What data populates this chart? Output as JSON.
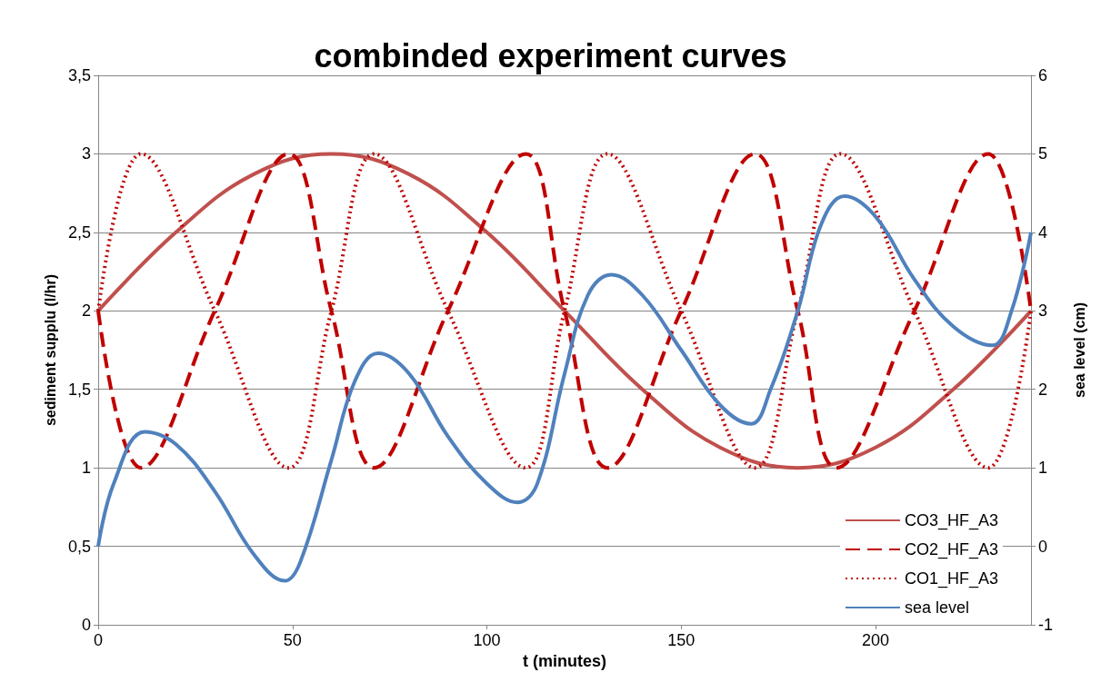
{
  "chart_data": {
    "type": "line",
    "title": "combinded experiment curves",
    "xlabel": "t (minutes)",
    "ylabel": "sediment supplu (l/hr)",
    "y2label": "sea level (cm)",
    "xlim": [
      0,
      240
    ],
    "xticks": [
      0,
      50,
      100,
      150,
      200
    ],
    "ylim": [
      0,
      3.5
    ],
    "yticks": [
      0,
      {
        "value": 0.5,
        "label": "0,5"
      },
      1,
      {
        "value": 1.5,
        "label": "1,5"
      },
      2,
      {
        "value": 2.5,
        "label": "2,5"
      },
      3,
      {
        "value": 3.5,
        "label": "3,5"
      }
    ],
    "y2lim": [
      -1,
      6
    ],
    "y2ticks": [
      -1,
      0,
      1,
      2,
      3,
      4,
      5,
      6
    ],
    "grid": "y",
    "legend": "bottom right",
    "marker": "none",
    "series": [
      {
        "name": "CO3_HF_A3",
        "color": "#c0504d",
        "line_style": "solid",
        "x": [
          0,
          20,
          40,
          60,
          80,
          100,
          120,
          140,
          160,
          180,
          200,
          220,
          240
        ],
        "values": [
          2,
          2.5,
          2.87,
          3,
          2.87,
          2.5,
          2,
          1.5,
          1.13,
          1,
          1.13,
          1.5,
          2
        ]
      },
      {
        "name": "CO2_HF_A3",
        "color": "#c00000",
        "line_style": "dashed",
        "x": [
          0,
          11,
          30,
          49,
          60,
          71,
          90,
          110,
          120,
          131,
          150,
          169,
          180,
          190,
          210,
          229,
          240
        ],
        "values": [
          2,
          1,
          2,
          3,
          2,
          1,
          2,
          3,
          2,
          1,
          2,
          3,
          2,
          1,
          2,
          3,
          2
        ]
      },
      {
        "name": "CO1_HF_A3",
        "color": "#c00000",
        "line_style": "dotted",
        "x": [
          0,
          11,
          30,
          49,
          60,
          71,
          90,
          110,
          120,
          131,
          150,
          169,
          180,
          191,
          210,
          229,
          240
        ],
        "values": [
          2,
          3,
          2,
          1,
          2,
          3,
          2,
          1,
          2,
          3,
          2,
          1,
          2,
          3,
          2,
          1,
          2
        ]
      },
      {
        "name": "sea level",
        "color": "#4f81bd",
        "line_style": "solid",
        "axis": "y2",
        "x": [
          0,
          4,
          12,
          20,
          30,
          40,
          48,
          52,
          60,
          66,
          72,
          80,
          90,
          100,
          108,
          113,
          120,
          126,
          132,
          140,
          150,
          160,
          168,
          173,
          180,
          186,
          192,
          200,
          210,
          220,
          230,
          235,
          240
        ],
        "values": [
          0,
          0.8,
          1.46,
          1.3,
          0.7,
          -0.1,
          -0.44,
          -0.2,
          1.1,
          2.1,
          2.46,
          2.2,
          1.4,
          0.8,
          0.56,
          0.8,
          2.2,
          3.2,
          3.46,
          3.2,
          2.5,
          1.8,
          1.56,
          2,
          3,
          4.1,
          4.46,
          4.2,
          3.4,
          2.8,
          2.56,
          3,
          4
        ]
      }
    ]
  }
}
